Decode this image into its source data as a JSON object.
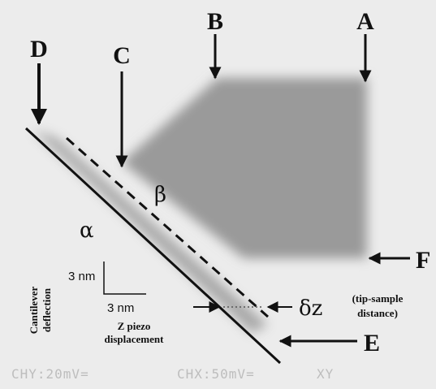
{
  "labels": {
    "a": "A",
    "b": "B",
    "c": "C",
    "d": "D",
    "e": "E",
    "f": "F",
    "alpha": "α",
    "beta": "β",
    "delta_z": "δz",
    "tip_sample": [
      "(tip-sample",
      "distance)"
    ]
  },
  "scale_bar": {
    "vertical": "3 nm",
    "horizontal": "3 nm",
    "y_axis": [
      "Cantilever",
      "deflection"
    ],
    "x_axis": [
      "Z piezo",
      "displacement"
    ]
  },
  "scope": {
    "channel_y": "CHY:20mV=",
    "channel_x": "CHX:50mV=",
    "mode": "XY"
  }
}
